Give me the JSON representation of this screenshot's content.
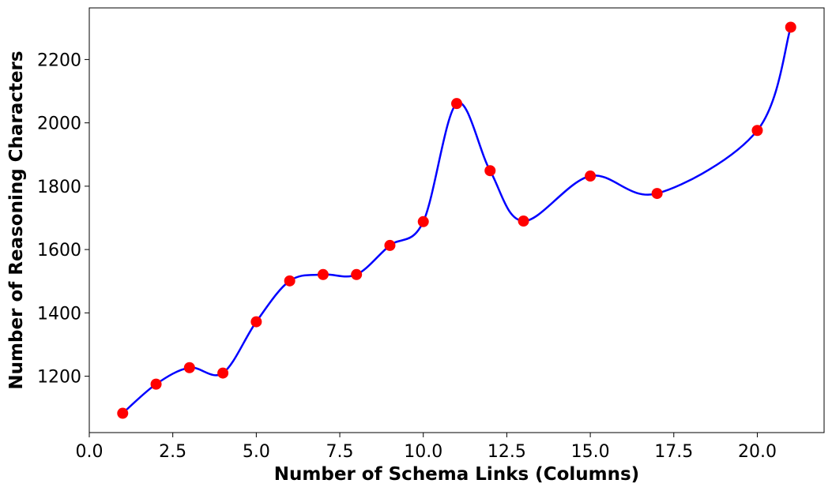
{
  "chart_data": {
    "type": "line",
    "smooth": true,
    "xlabel": "Number of Schema Links (Columns)",
    "ylabel": "Number of Reasoning Characters",
    "x": [
      1,
      2,
      3,
      4,
      5,
      6,
      7,
      8,
      9,
      10,
      11,
      12,
      13,
      15,
      17,
      20,
      21
    ],
    "values": [
      1083,
      1175,
      1227,
      1210,
      1372,
      1501,
      1521,
      1521,
      1613,
      1688,
      2061,
      1849,
      1690,
      1832,
      1777,
      1976,
      2302
    ],
    "line_color": "#0000ff",
    "marker_color": "#ff0000",
    "xlim": [
      0,
      22
    ],
    "ylim": [
      1022,
      2363
    ],
    "xticks": [
      {
        "value": 0,
        "label": "0.0"
      },
      2.5,
      {
        "value": 5,
        "label": "5.0"
      },
      7.5,
      {
        "value": 10,
        "label": "10.0"
      },
      12.5,
      {
        "value": 15,
        "label": "15.0"
      },
      17.5,
      {
        "value": 20,
        "label": "20.0"
      }
    ],
    "yticks": [
      1200,
      1400,
      1600,
      1800,
      2000,
      2200
    ]
  }
}
